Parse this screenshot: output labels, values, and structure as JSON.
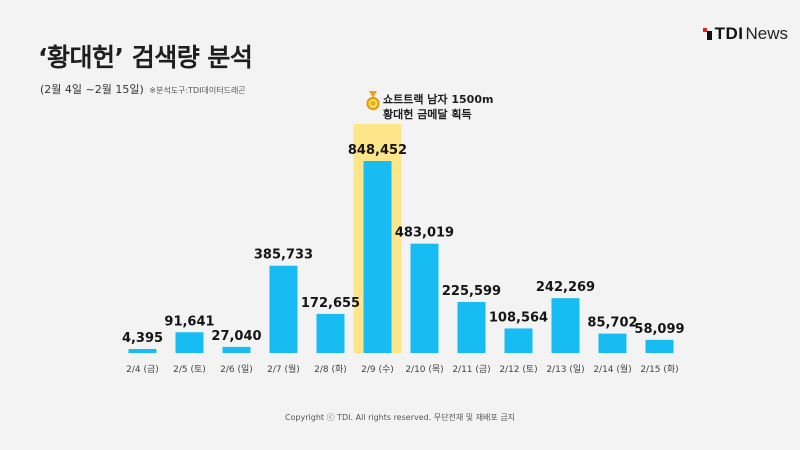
{
  "header": {
    "title": "‘황대헌’ 검색량 분석",
    "period": "(2월 4일 ~2월 15일)",
    "tool_note": "※분석도구:TDI데이터드래곤"
  },
  "logo": {
    "brand": "TDI",
    "suffix": "News"
  },
  "footer": {
    "copyright": "Copyright ⓒ TDI. All rights reserved. 무단전재 및 재배포 금지"
  },
  "annotation": {
    "icon": "medal-icon",
    "line1": "쇼트트랙 남자 1500m",
    "line2": "황대헌 금메달 획득",
    "highlight_category": "2/9 (수)"
  },
  "colors": {
    "bar": "#17bdf2",
    "highlight": "#fde68a",
    "background": "#f3f3f3"
  },
  "chart_data": {
    "type": "bar",
    "title": "‘황대헌’ 검색량 분석",
    "categories": [
      "2/4 (금)",
      "2/5 (토)",
      "2/6 (일)",
      "2/7 (월)",
      "2/8 (화)",
      "2/9 (수)",
      "2/10 (목)",
      "2/11 (금)",
      "2/12 (토)",
      "2/13 (일)",
      "2/14 (월)",
      "2/15 (화)"
    ],
    "values": [
      4395,
      91641,
      27040,
      385733,
      172655,
      848452,
      483019,
      225599,
      108564,
      242269,
      85702,
      58099
    ],
    "value_labels": [
      "4,395",
      "91,641",
      "27,040",
      "385,733",
      "172,655",
      "848,452",
      "483,019",
      "225,599",
      "108,564",
      "242,269",
      "85,702",
      "58,099"
    ],
    "xlabel": "",
    "ylabel": "",
    "ylim": [
      0,
      848452
    ],
    "grid": false,
    "legend": "none"
  }
}
